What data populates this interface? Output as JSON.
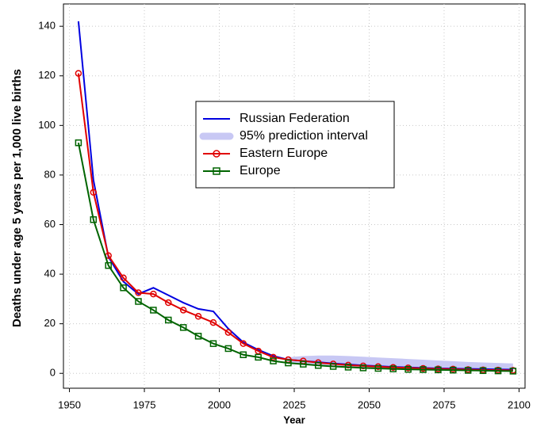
{
  "chart_data": {
    "type": "line",
    "x_label": "Year",
    "y_label": "Deaths under age 5 years per 1,000 live births",
    "x": [
      1953,
      1958,
      1963,
      1968,
      1973,
      1978,
      1983,
      1988,
      1993,
      1998,
      2003,
      2008,
      2013,
      2018,
      2023,
      2028,
      2033,
      2038,
      2043,
      2048,
      2053,
      2058,
      2063,
      2068,
      2073,
      2078,
      2083,
      2088,
      2093,
      2098
    ],
    "series": [
      {
        "name": "Russian Federation",
        "color": "#0000e0",
        "marker": "none",
        "values": [
          142,
          78,
          47,
          37,
          32,
          34.5,
          31.5,
          28.5,
          26,
          25,
          18,
          12.5,
          9.5,
          7,
          5.5,
          5,
          4.5,
          4,
          3.6,
          3.2,
          2.9,
          2.6,
          2.4,
          2.2,
          2,
          1.9,
          1.8,
          1.7,
          1.6,
          1.5
        ]
      },
      {
        "name": "Eastern Europe",
        "color": "#e00000",
        "marker": "circle",
        "values": [
          121,
          73,
          47.5,
          38.5,
          32.5,
          32,
          28.5,
          25.5,
          23,
          20.5,
          16.5,
          12,
          9,
          6.5,
          5.5,
          5,
          4.3,
          3.8,
          3.3,
          3,
          2.7,
          2.4,
          2.2,
          2,
          1.8,
          1.7,
          1.5,
          1.4,
          1.3,
          1.2
        ]
      },
      {
        "name": "Europe",
        "color": "#006400",
        "marker": "square",
        "values": [
          93,
          62,
          43.5,
          34.5,
          29,
          25.5,
          21.5,
          18.5,
          15,
          12,
          10,
          7.5,
          6.5,
          5,
          4.2,
          3.7,
          3.2,
          2.8,
          2.5,
          2.2,
          2,
          1.8,
          1.6,
          1.5,
          1.4,
          1.3,
          1.2,
          1.1,
          1,
          0.9
        ]
      }
    ],
    "interval": {
      "name": "95% prediction interval",
      "color": "#c8c8f4",
      "x": [
        2023,
        2028,
        2033,
        2038,
        2043,
        2048,
        2053,
        2058,
        2063,
        2068,
        2073,
        2078,
        2083,
        2088,
        2093,
        2098
      ],
      "lower": [
        4.5,
        3.5,
        3,
        2.6,
        2.3,
        2,
        1.8,
        1.6,
        1.4,
        1.3,
        1.2,
        1.1,
        1,
        0.9,
        0.8,
        0.8
      ],
      "upper": [
        6.5,
        7,
        7.2,
        7.2,
        7,
        6.7,
        6.4,
        6.1,
        5.8,
        5.5,
        5.2,
        4.9,
        4.6,
        4.4,
        4.2,
        4
      ]
    },
    "xlim": [
      1948,
      2102
    ],
    "ylim": [
      -6,
      149
    ],
    "xticks": [
      1950,
      1975,
      2000,
      2025,
      2050,
      2075,
      2100
    ],
    "yticks": [
      0,
      20,
      40,
      60,
      80,
      100,
      120,
      140
    ],
    "grid": true
  }
}
